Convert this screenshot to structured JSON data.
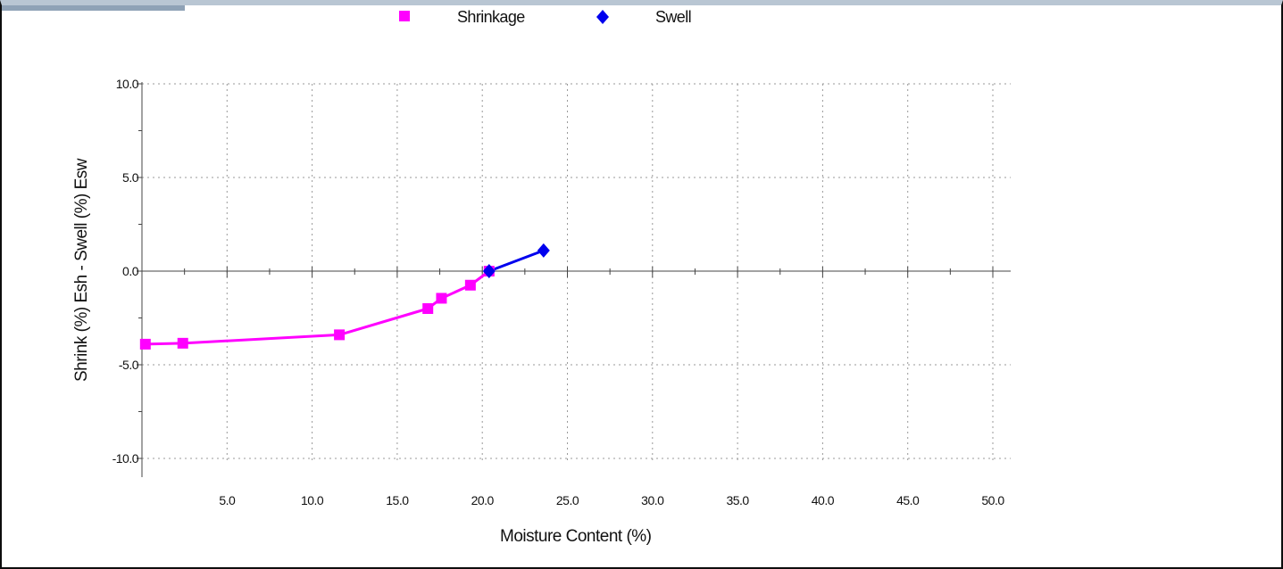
{
  "chart_data": {
    "type": "line",
    "title": "",
    "xlabel": "Moisture Content (%)",
    "ylabel": "Shrink (%) Esh - Swell (%) Esw",
    "xlim": [
      0,
      51
    ],
    "ylim": [
      -10,
      10
    ],
    "x_ticks": [
      "5.0",
      "10.0",
      "15.0",
      "20.0",
      "25.0",
      "30.0",
      "35.0",
      "40.0",
      "45.0",
      "50.0"
    ],
    "x_tick_values": [
      5,
      10,
      15,
      20,
      25,
      30,
      35,
      40,
      45,
      50
    ],
    "y_ticks": [
      "10.0",
      "5.0",
      "0.0",
      "-5.0",
      "-10.0"
    ],
    "y_tick_values": [
      10,
      5,
      0,
      -5,
      -10
    ],
    "grid": true,
    "legend_position": "top-center",
    "series": [
      {
        "name": "Shrinkage",
        "color": "#ff00ff",
        "marker": "square",
        "points": [
          [
            0.2,
            -3.9
          ],
          [
            2.4,
            -3.85
          ],
          [
            11.6,
            -3.4
          ],
          [
            16.8,
            -2.0
          ],
          [
            17.6,
            -1.45
          ],
          [
            19.3,
            -0.75
          ],
          [
            20.4,
            0.0
          ]
        ]
      },
      {
        "name": "Swell",
        "color": "#0000ee",
        "marker": "diamond",
        "points": [
          [
            20.4,
            0.0
          ],
          [
            23.6,
            1.1
          ]
        ]
      }
    ]
  }
}
